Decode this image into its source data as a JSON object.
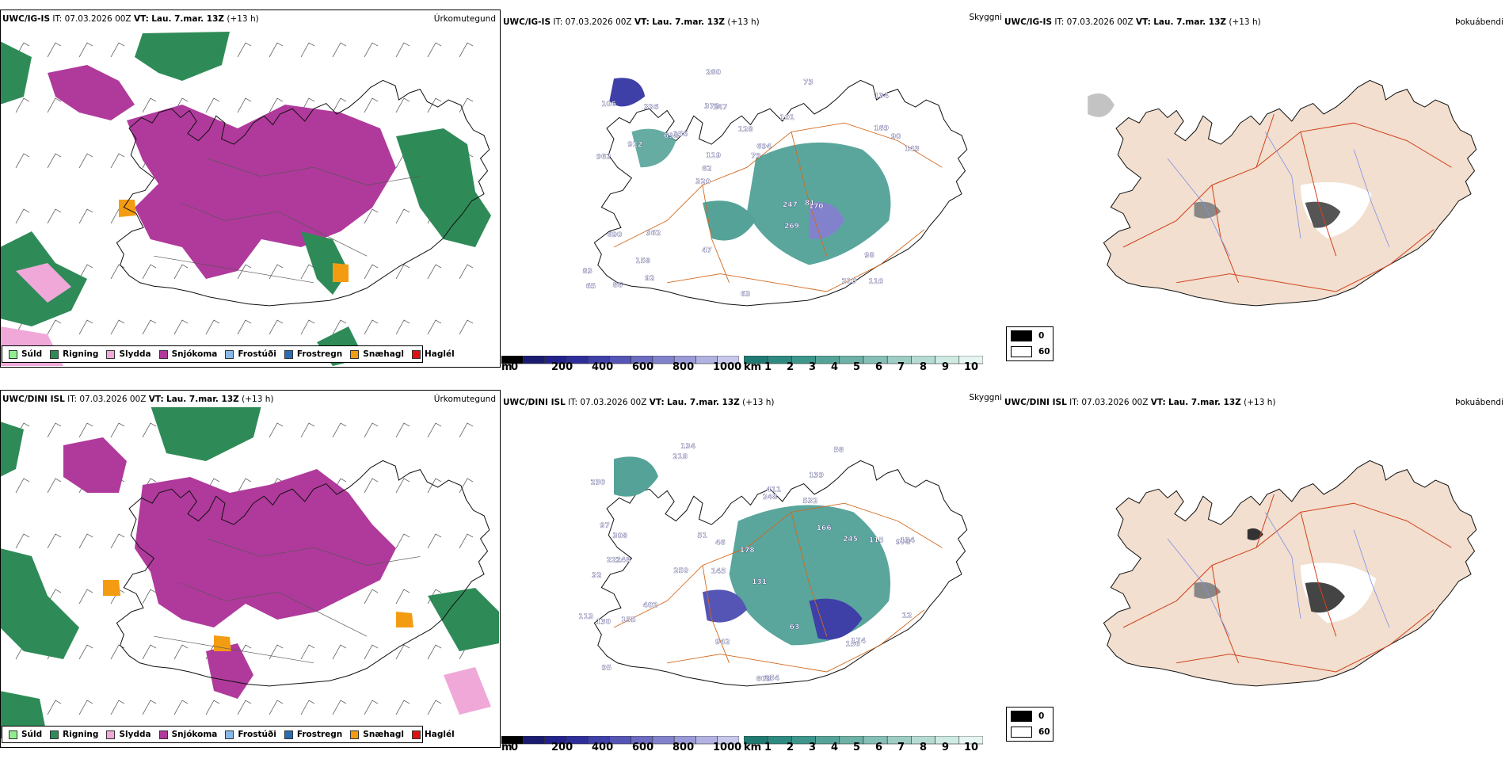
{
  "rows": [
    {
      "model": "UWC/IG-IS",
      "it_label": "IT:",
      "it_value": "07.03.2026 00Z",
      "vt_label": "VT:",
      "vt_value": "Lau. 7.mar. 13Z",
      "lead": "(+13 h)",
      "visibility_labels": [
        "110",
        "962",
        "134",
        "320",
        "101",
        "86",
        "378",
        "128",
        "690",
        "156",
        "83",
        "158",
        "147",
        "694",
        "170",
        "106",
        "280",
        "143",
        "247",
        "169",
        "62",
        "47",
        "119",
        "336",
        "73",
        "362",
        "210",
        "98",
        "81",
        "63",
        "698",
        "912",
        "269",
        "92",
        "90",
        "79",
        "65"
      ]
    },
    {
      "model": "UWC/DINI ISL",
      "it_label": "IT:",
      "it_value": "07.03.2026 00Z",
      "vt_label": "VT:",
      "vt_value": "Lau. 7.mar. 13Z",
      "lead": "(+13 h)",
      "visibility_labels": [
        "134",
        "139",
        "978",
        "145",
        "131",
        "248",
        "230",
        "532",
        "32",
        "248",
        "178",
        "95",
        "218",
        "250",
        "809",
        "254",
        "942",
        "58",
        "166",
        "402",
        "308",
        "221",
        "134",
        "115",
        "113",
        "97",
        "46",
        "245",
        "174",
        "130",
        "150",
        "411",
        "155",
        "51",
        "63",
        "12"
      ]
    }
  ],
  "panels": {
    "precip_type": {
      "title": "Úrkomutegund",
      "legend": [
        {
          "label": "Súld",
          "color": "#90ee90"
        },
        {
          "label": "Rigning",
          "color": "#2e8b57"
        },
        {
          "label": "Slydda",
          "color": "#f0a8d8"
        },
        {
          "label": "Snjókoma",
          "color": "#b03a9c"
        },
        {
          "label": "Frostúði",
          "color": "#87b8e8"
        },
        {
          "label": "Frostregn",
          "color": "#2a6db5"
        },
        {
          "label": "Snæhagl",
          "color": "#f39c12"
        },
        {
          "label": "Haglél",
          "color": "#e01010"
        }
      ]
    },
    "visibility": {
      "title": "Skyggni",
      "unit_m": "m",
      "unit_km": "km",
      "m_ticks": [
        "0",
        "200",
        "400",
        "600",
        "800",
        "1000"
      ],
      "km_ticks": [
        "1",
        "2",
        "3",
        "4",
        "5",
        "6",
        "7",
        "8",
        "9",
        "10"
      ],
      "m_colors": [
        "#000000",
        "#1a1a6e",
        "#22228a",
        "#2e2e9a",
        "#3f3fa8",
        "#5555b5",
        "#6b6bc0",
        "#8282cc",
        "#9a9ad8",
        "#b2b2e2",
        "#c8c8ec"
      ],
      "km_colors": [
        "#1f7a72",
        "#2e8a80",
        "#3d968c",
        "#55a398",
        "#6eb1a6",
        "#86bfb5",
        "#9ecdc4",
        "#b6dbd3",
        "#ceeae3",
        "#e6f5f2"
      ]
    },
    "cloud": {
      "title": "Þokuábendi",
      "legend": [
        {
          "label": "0",
          "color": "#000000"
        },
        {
          "label": "60",
          "color": "#ffffff"
        }
      ]
    }
  }
}
